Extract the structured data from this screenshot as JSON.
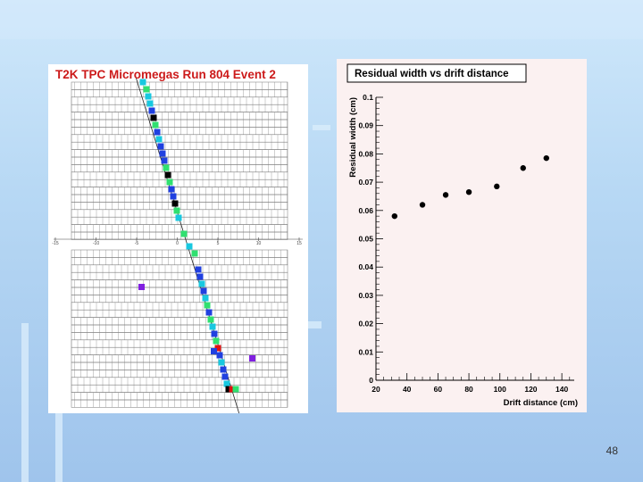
{
  "event_display": {
    "title": "T2K TPC Micromegas Run 804 Event 2",
    "axis_ticks": [
      "-15",
      "-10",
      "-5",
      "0",
      "5",
      "10",
      "15"
    ],
    "colors": {
      "title": "#cc1a1a",
      "pad_cyan": "#18c8e0",
      "pad_green": "#30e070",
      "pad_blue": "#2040e0",
      "pad_black": "#000000",
      "pad_red": "#e01010",
      "pad_purple": "#8020e0"
    }
  },
  "slide": {
    "number": "48"
  },
  "chart_data": {
    "type": "scatter",
    "title": "Residual width vs drift distance",
    "xlabel": "Drift distance (cm)",
    "ylabel": "Residual width (cm)",
    "xlim": [
      20,
      148
    ],
    "ylim": [
      0,
      0.1
    ],
    "x_ticks": [
      "20",
      "40",
      "60",
      "80",
      "100",
      "120",
      "140"
    ],
    "y_ticks": [
      "0",
      "0.01",
      "0.02",
      "0.03",
      "0.04",
      "0.05",
      "0.06",
      "0.07",
      "0.08",
      "0.09",
      "0.1"
    ],
    "x": [
      32,
      50,
      65,
      80,
      98,
      115,
      130
    ],
    "y": [
      0.058,
      0.062,
      0.0655,
      0.0665,
      0.0685,
      0.075,
      0.0785
    ],
    "grid": false,
    "marker_color": "#000000"
  }
}
